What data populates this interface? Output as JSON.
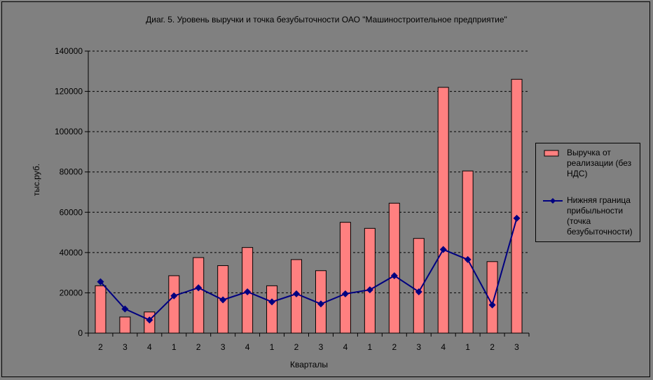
{
  "chart_data": {
    "type": "bar",
    "title": "Диаг. 5. Уровень выручки и точка безубыточности ОАО \"Машиностроительное предприятие\"",
    "xlabel": "Кварталы",
    "ylabel": "тыс.руб.",
    "ylim": [
      0,
      140000
    ],
    "yticks": [
      "0",
      "20000",
      "40000",
      "60000",
      "80000",
      "100000",
      "120000",
      "140000"
    ],
    "categories": [
      "2",
      "3",
      "4",
      "1",
      "2",
      "3",
      "4",
      "1",
      "2",
      "3",
      "4",
      "1",
      "2",
      "3",
      "4",
      "1",
      "2",
      "3"
    ],
    "grid": true,
    "legend_position": "right",
    "series": [
      {
        "name": "Выручка от реализации (без НДС)",
        "kind": "bar",
        "color": "#FF8080",
        "values": [
          23500,
          8000,
          10500,
          28500,
          37500,
          33500,
          42500,
          23500,
          36500,
          31000,
          55000,
          52000,
          64500,
          47000,
          122000,
          80500,
          35500,
          126000
        ]
      },
      {
        "name": "Нижняя граница прибыльности (точка безубыточности)",
        "kind": "line",
        "color": "#000080",
        "values": [
          25500,
          12000,
          6500,
          18500,
          22500,
          16500,
          20500,
          15500,
          19500,
          14500,
          19500,
          21500,
          28500,
          20500,
          41500,
          36500,
          14000,
          57000
        ]
      }
    ]
  }
}
